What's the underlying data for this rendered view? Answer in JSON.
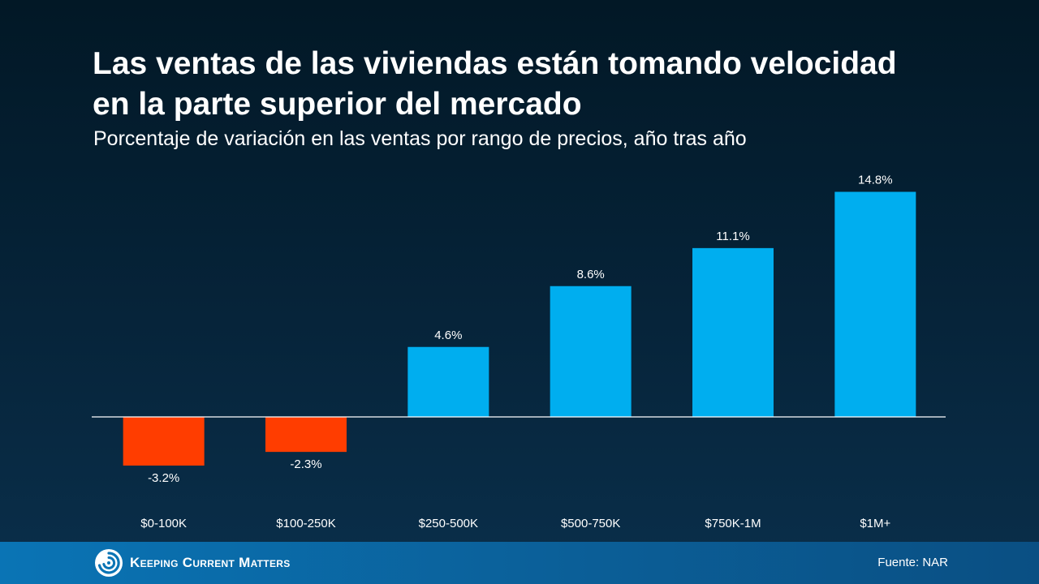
{
  "title_line1": "Las ventas de las viviendas están tomando velocidad",
  "title_line2": "en la parte superior del mercado",
  "subtitle": "Porcentaje de variación en las ventas por rango de precios, año tras año",
  "footer": {
    "logo_text": "Keeping Current Matters",
    "source": "Fuente: NAR"
  },
  "colors": {
    "positive": "#00AEEF",
    "negative": "#FF3D00",
    "baseline": "#FFFFFF"
  },
  "chart_data": {
    "type": "bar",
    "categories": [
      "$0-100K",
      "$100-250K",
      "$250-500K",
      "$500-750K",
      "$750K-1M",
      "$1M+"
    ],
    "values": [
      -3.2,
      -2.3,
      4.6,
      8.6,
      11.1,
      14.8
    ],
    "value_labels": [
      "-3.2%",
      "-2.3%",
      "4.6%",
      "8.6%",
      "11.1%",
      "14.8%"
    ],
    "title": "Las ventas de las viviendas están tomando velocidad en la parte superior del mercado",
    "subtitle": "Porcentaje de variación en las ventas por rango de precios, año tras año",
    "ylim": [
      -3.2,
      14.8
    ],
    "grid": false,
    "legend": "none"
  }
}
